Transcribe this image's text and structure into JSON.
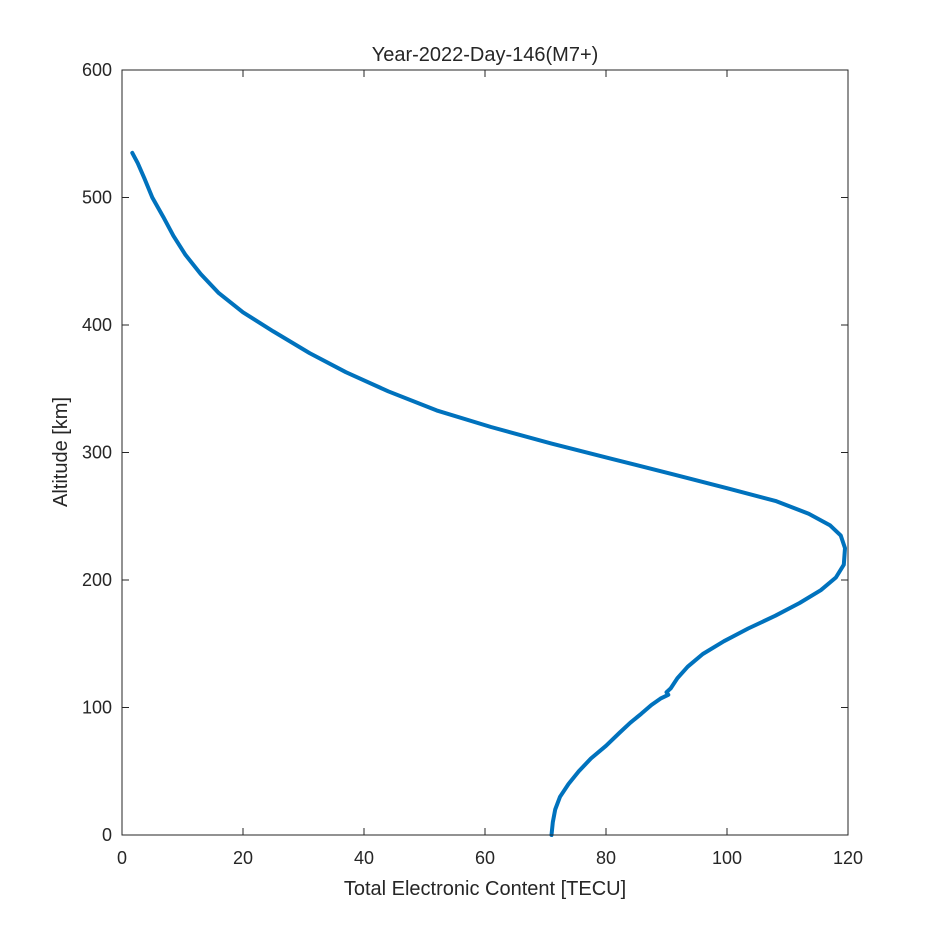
{
  "chart_data": {
    "type": "line",
    "title": "Year-2022-Day-146(M7+)",
    "xlabel": "Total Electronic Content [TECU]",
    "ylabel": "Altitude [km]",
    "xlim": [
      0,
      120
    ],
    "ylim": [
      0,
      600
    ],
    "xticks": [
      0,
      20,
      40,
      60,
      80,
      100,
      120
    ],
    "yticks": [
      0,
      100,
      200,
      300,
      400,
      500,
      600
    ],
    "grid": false,
    "line_color": "#0072BD",
    "series": [
      {
        "x": [
          71.0,
          71.2,
          71.6,
          72.4,
          73.8,
          75.5,
          77.5,
          80.0,
          82.2,
          84.0,
          85.8,
          87.5,
          89.0,
          90.3,
          90.0,
          90.7,
          91.8,
          93.5,
          96.0,
          99.5,
          103.5,
          108.0,
          112.0,
          115.5,
          118.0,
          119.3,
          119.5,
          118.8,
          117.0,
          113.5,
          108.0,
          100.0,
          91.0,
          81.0,
          71.0,
          61.0,
          52.0,
          44.0,
          37.0,
          31.0,
          25.0,
          20.0,
          16.0,
          13.0,
          10.5,
          8.5,
          6.8,
          5.0,
          3.7,
          2.6,
          1.7
        ],
        "y": [
          0,
          10,
          20,
          30,
          40,
          50,
          60,
          70,
          80,
          88,
          95,
          102,
          107,
          110,
          112,
          115,
          123,
          132,
          142,
          152,
          162,
          172,
          182,
          192,
          202,
          212,
          225,
          235,
          243,
          252,
          262,
          272,
          283,
          295,
          307,
          320,
          333,
          348,
          363,
          378,
          395,
          410,
          425,
          440,
          455,
          470,
          485,
          500,
          515,
          527,
          535
        ]
      }
    ]
  }
}
